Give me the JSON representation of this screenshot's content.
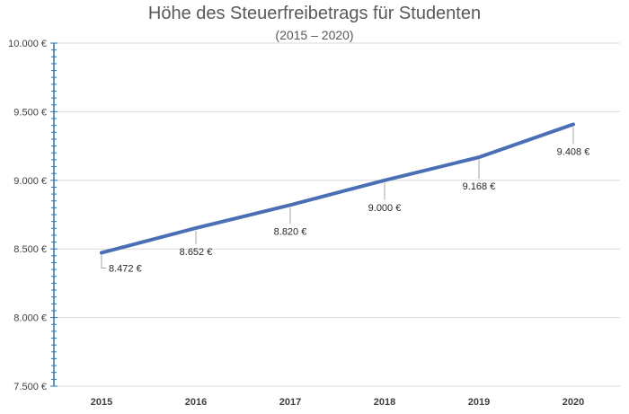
{
  "chart_data": {
    "type": "line",
    "title": "Höhe des Steuerfreibetrags für Studenten",
    "subtitle": "(2015 – 2020)",
    "categories": [
      "2015",
      "2016",
      "2017",
      "2018",
      "2019",
      "2020"
    ],
    "values": [
      8472,
      8652,
      8820,
      9000,
      9168,
      9408
    ],
    "value_labels": [
      "8.472 €",
      "8.652 €",
      "8.820 €",
      "9.000 €",
      "9.168 €",
      "9.408 €"
    ],
    "ylim": [
      7500,
      10000
    ],
    "y_ticks": [
      10000,
      9500,
      9000,
      8500,
      8000,
      7500
    ],
    "y_tick_labels": [
      "10.000 €",
      "9.500 €",
      "9.000 €",
      "8.500 €",
      "8.000 €",
      "7.500 €"
    ],
    "grid": true,
    "line_color": "#4a6fb5",
    "axis_color": "#2e75b6",
    "grid_color": "#d9d9d9"
  }
}
